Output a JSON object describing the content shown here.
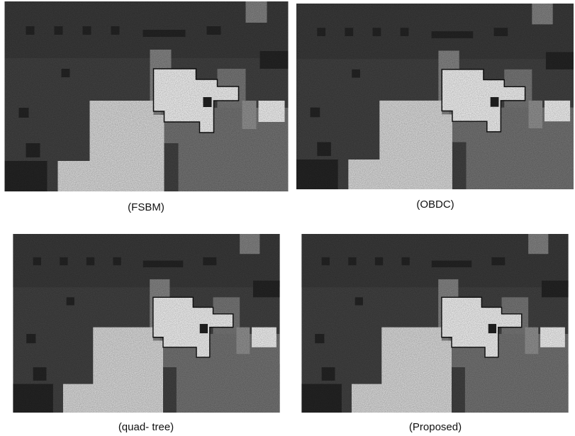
{
  "panels": [
    {
      "caption": "(FSBM)"
    },
    {
      "caption": "(OBDC)"
    },
    {
      "caption": "(quad- tree)"
    },
    {
      "caption": "(Proposed)"
    }
  ]
}
